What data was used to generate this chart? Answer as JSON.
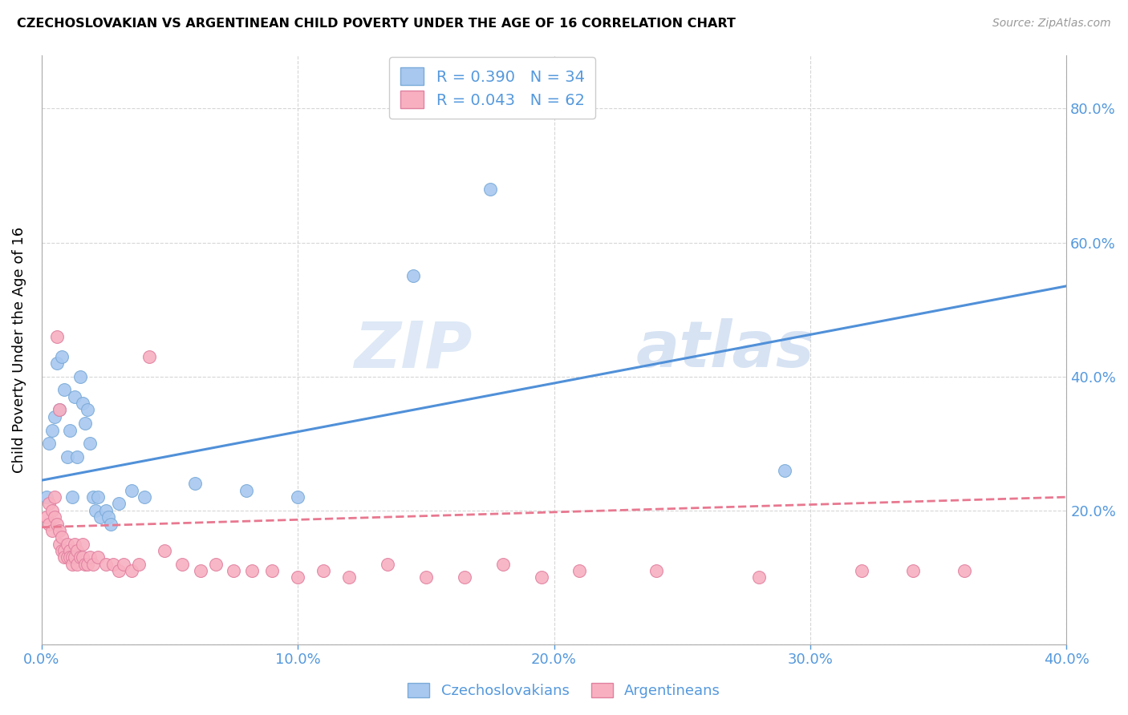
{
  "title": "CZECHOSLOVAKIAN VS ARGENTINEAN CHILD POVERTY UNDER THE AGE OF 16 CORRELATION CHART",
  "source": "Source: ZipAtlas.com",
  "ylabel": "Child Poverty Under the Age of 16",
  "watermark": "ZIPatlas",
  "legend_r_values": [
    "0.390",
    "0.043"
  ],
  "legend_n_values": [
    "34",
    "62"
  ],
  "czech_color": "#a8c8f0",
  "czech_edge": "#7aaad8",
  "arg_color": "#f8b0c0",
  "arg_edge": "#e080a0",
  "regression_czech_color": "#5090d8",
  "regression_arg_color": "#e87890",
  "xlim": [
    0.0,
    0.4
  ],
  "ylim": [
    0.0,
    0.88
  ],
  "xticks": [
    0.0,
    0.1,
    0.2,
    0.3,
    0.4
  ],
  "xticklabels": [
    "0.0%",
    "10.0%",
    "20.0%",
    "30.0%",
    "40.0%"
  ],
  "yticks": [
    0.0,
    0.2,
    0.4,
    0.6,
    0.8
  ],
  "yticklabels_right": [
    "",
    "20.0%",
    "40.0%",
    "60.0%",
    "80.0%"
  ],
  "czech_points": [
    [
      0.002,
      0.22
    ],
    [
      0.003,
      0.3
    ],
    [
      0.004,
      0.32
    ],
    [
      0.005,
      0.34
    ],
    [
      0.006,
      0.42
    ],
    [
      0.007,
      0.35
    ],
    [
      0.008,
      0.43
    ],
    [
      0.009,
      0.38
    ],
    [
      0.01,
      0.28
    ],
    [
      0.011,
      0.32
    ],
    [
      0.012,
      0.22
    ],
    [
      0.013,
      0.37
    ],
    [
      0.014,
      0.28
    ],
    [
      0.015,
      0.4
    ],
    [
      0.016,
      0.36
    ],
    [
      0.017,
      0.33
    ],
    [
      0.018,
      0.35
    ],
    [
      0.019,
      0.3
    ],
    [
      0.02,
      0.22
    ],
    [
      0.021,
      0.2
    ],
    [
      0.022,
      0.22
    ],
    [
      0.023,
      0.19
    ],
    [
      0.025,
      0.2
    ],
    [
      0.026,
      0.19
    ],
    [
      0.027,
      0.18
    ],
    [
      0.03,
      0.21
    ],
    [
      0.035,
      0.23
    ],
    [
      0.04,
      0.22
    ],
    [
      0.06,
      0.24
    ],
    [
      0.08,
      0.23
    ],
    [
      0.1,
      0.22
    ],
    [
      0.145,
      0.55
    ],
    [
      0.175,
      0.68
    ],
    [
      0.29,
      0.26
    ]
  ],
  "arg_points": [
    [
      0.002,
      0.19
    ],
    [
      0.003,
      0.21
    ],
    [
      0.003,
      0.18
    ],
    [
      0.004,
      0.2
    ],
    [
      0.004,
      0.17
    ],
    [
      0.005,
      0.22
    ],
    [
      0.005,
      0.19
    ],
    [
      0.006,
      0.46
    ],
    [
      0.006,
      0.18
    ],
    [
      0.007,
      0.35
    ],
    [
      0.007,
      0.17
    ],
    [
      0.007,
      0.15
    ],
    [
      0.008,
      0.16
    ],
    [
      0.008,
      0.14
    ],
    [
      0.009,
      0.14
    ],
    [
      0.009,
      0.13
    ],
    [
      0.01,
      0.15
    ],
    [
      0.01,
      0.13
    ],
    [
      0.011,
      0.14
    ],
    [
      0.011,
      0.13
    ],
    [
      0.012,
      0.13
    ],
    [
      0.012,
      0.12
    ],
    [
      0.013,
      0.15
    ],
    [
      0.013,
      0.13
    ],
    [
      0.014,
      0.14
    ],
    [
      0.014,
      0.12
    ],
    [
      0.015,
      0.13
    ],
    [
      0.016,
      0.15
    ],
    [
      0.016,
      0.13
    ],
    [
      0.017,
      0.12
    ],
    [
      0.018,
      0.12
    ],
    [
      0.019,
      0.13
    ],
    [
      0.02,
      0.12
    ],
    [
      0.022,
      0.13
    ],
    [
      0.025,
      0.12
    ],
    [
      0.028,
      0.12
    ],
    [
      0.03,
      0.11
    ],
    [
      0.032,
      0.12
    ],
    [
      0.035,
      0.11
    ],
    [
      0.038,
      0.12
    ],
    [
      0.042,
      0.43
    ],
    [
      0.048,
      0.14
    ],
    [
      0.055,
      0.12
    ],
    [
      0.062,
      0.11
    ],
    [
      0.068,
      0.12
    ],
    [
      0.075,
      0.11
    ],
    [
      0.082,
      0.11
    ],
    [
      0.09,
      0.11
    ],
    [
      0.1,
      0.1
    ],
    [
      0.11,
      0.11
    ],
    [
      0.12,
      0.1
    ],
    [
      0.135,
      0.12
    ],
    [
      0.15,
      0.1
    ],
    [
      0.165,
      0.1
    ],
    [
      0.18,
      0.12
    ],
    [
      0.195,
      0.1
    ],
    [
      0.21,
      0.11
    ],
    [
      0.24,
      0.11
    ],
    [
      0.28,
      0.1
    ],
    [
      0.32,
      0.11
    ],
    [
      0.34,
      0.11
    ],
    [
      0.36,
      0.11
    ]
  ],
  "czech_regression": [
    0.0,
    0.4,
    0.245,
    0.535
  ],
  "arg_regression": [
    0.0,
    0.4,
    0.175,
    0.22
  ]
}
